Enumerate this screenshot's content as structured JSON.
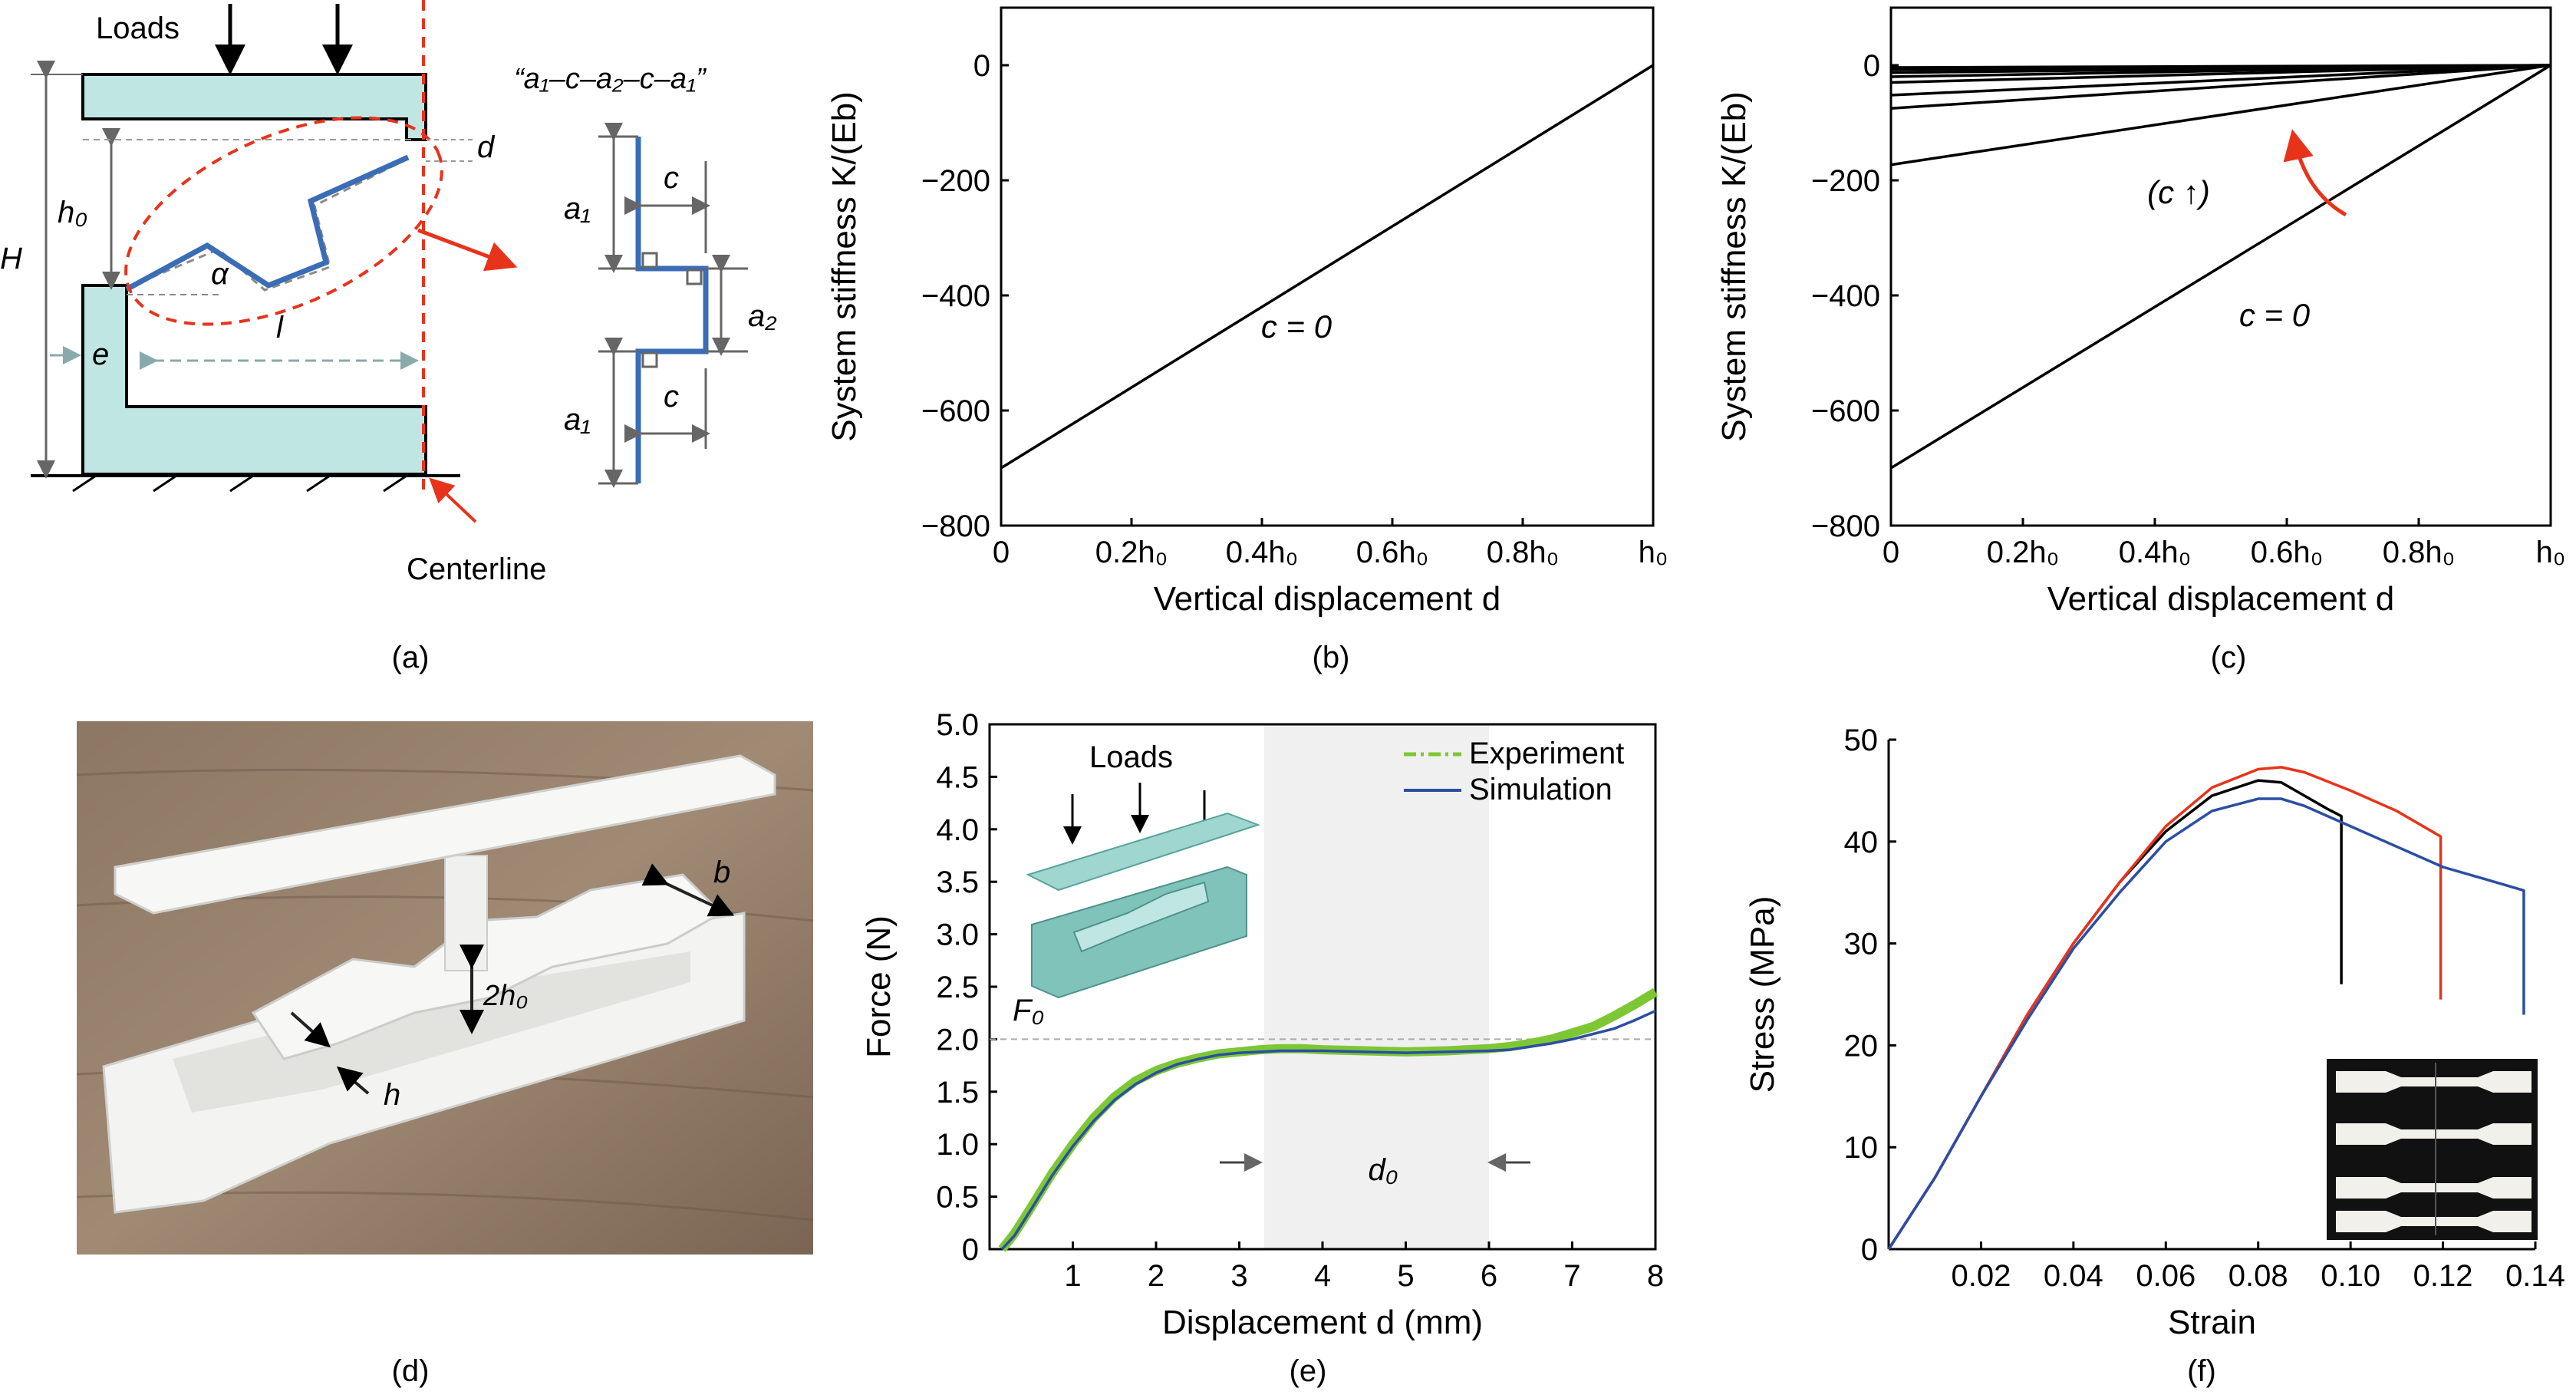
{
  "panels": {
    "a": {
      "caption": "(a)",
      "loads": "Loads",
      "sequence": "“a₁–c–a₂–c–a₁”",
      "labels": {
        "H": "H",
        "h0": "h₀",
        "e": "e",
        "alpha": "α",
        "l": "l",
        "d": "d",
        "a1_top": "a₁",
        "a2": "a₂",
        "a1_bottom": "a₁",
        "c_top": "c",
        "c_bottom": "c"
      },
      "centerline": "Centerline"
    },
    "b": {
      "caption": "(b)",
      "annotation": "c = 0"
    },
    "c": {
      "caption": "(c)",
      "annotation_c0": "c = 0",
      "annotation_arrow": "(c ↑)"
    },
    "d": {
      "caption": "(d)",
      "labels": {
        "b": "b",
        "two_h0": "2h₀",
        "h": "h"
      }
    },
    "e": {
      "caption": "(e)",
      "inset_loads": "Loads",
      "f0": "F₀",
      "d0": "d₀"
    },
    "f": {
      "caption": "(f)"
    }
  },
  "colors": {
    "experiment": "#7dc735",
    "simulation": "#2b4ea3",
    "blue_beam": "#3a6db5",
    "fill_part": "#bfe6e3",
    "red": "#e8331b",
    "black": "#000000",
    "shade": "#f0f0f0"
  },
  "chart_data": [
    {
      "id": "b",
      "type": "line",
      "xlabel": "Vertical displacement d",
      "ylabel": "System stiffness K/(Eb)",
      "xlim": [
        0,
        1
      ],
      "ylim": [
        -800,
        100
      ],
      "x_ticks": [
        0,
        0.2,
        0.4,
        0.6,
        0.8,
        1
      ],
      "x_tick_labels": [
        "0",
        "0.2h₀",
        "0.4h₀",
        "0.6h₀",
        "0.8h₀",
        "h₀"
      ],
      "y_ticks": [
        -800,
        -600,
        -400,
        -200,
        0
      ],
      "y_tick_labels": [
        "−800",
        "−600",
        "−400",
        "−200",
        "0"
      ],
      "series": [
        {
          "x": [
            0,
            1
          ],
          "y": [
            -700,
            0
          ]
        }
      ]
    },
    {
      "id": "c",
      "type": "line",
      "xlabel": "Vertical displacement d",
      "ylabel": "System stiffness K/(Eb)",
      "xlim": [
        0,
        1
      ],
      "ylim": [
        -800,
        100
      ],
      "x_ticks": [
        0,
        0.2,
        0.4,
        0.6,
        0.8,
        1
      ],
      "x_tick_labels": [
        "0",
        "0.2h₀",
        "0.4h₀",
        "0.6h₀",
        "0.8h₀",
        "h₀"
      ],
      "y_ticks": [
        -800,
        -600,
        -400,
        -200,
        0
      ],
      "y_tick_labels": [
        "−800",
        "−600",
        "−400",
        "−200",
        "0"
      ],
      "series": [
        {
          "x": [
            0,
            1
          ],
          "y": [
            -700,
            0
          ]
        },
        {
          "x": [
            0,
            1
          ],
          "y": [
            -173,
            0
          ]
        },
        {
          "x": [
            0,
            1
          ],
          "y": [
            -75,
            0
          ]
        },
        {
          "x": [
            0,
            1
          ],
          "y": [
            -52,
            0
          ]
        },
        {
          "x": [
            0,
            1
          ],
          "y": [
            -30,
            0
          ]
        },
        {
          "x": [
            0,
            1
          ],
          "y": [
            -20,
            0
          ]
        },
        {
          "x": [
            0,
            1
          ],
          "y": [
            -13,
            0
          ]
        },
        {
          "x": [
            0,
            1
          ],
          "y": [
            -8,
            0
          ]
        },
        {
          "x": [
            0,
            1
          ],
          "y": [
            -4,
            0
          ]
        }
      ]
    },
    {
      "id": "e",
      "type": "line",
      "xlabel": "Displacement d (mm)",
      "ylabel": "Force (N)",
      "xlim": [
        0,
        8
      ],
      "ylim": [
        0,
        5
      ],
      "x_ticks": [
        1,
        2,
        3,
        4,
        5,
        6,
        7,
        8
      ],
      "y_ticks": [
        0,
        0.5,
        1.0,
        1.5,
        2.0,
        2.5,
        3.0,
        3.5,
        4.0,
        4.5,
        5.0
      ],
      "y_tick_labels": [
        "0",
        "0.5",
        "1.0",
        "1.5",
        "2.0",
        "2.5",
        "3.0",
        "3.5",
        "4.0",
        "4.5",
        "5.0"
      ],
      "shaded_region": [
        3.3,
        6.0
      ],
      "f0_level": 2.0,
      "series": [
        {
          "name": "Experiment",
          "x": [
            0.15,
            0.3,
            0.5,
            0.75,
            1.0,
            1.25,
            1.5,
            1.75,
            2.0,
            2.25,
            2.5,
            2.75,
            3.0,
            3.25,
            3.5,
            3.75,
            4.0,
            4.5,
            5.0,
            5.5,
            6.0,
            6.25,
            6.5,
            6.75,
            7.0,
            7.25,
            7.5,
            7.75,
            8.0
          ],
          "y": [
            0.0,
            0.15,
            0.4,
            0.72,
            1.0,
            1.25,
            1.45,
            1.6,
            1.7,
            1.77,
            1.82,
            1.86,
            1.88,
            1.9,
            1.91,
            1.91,
            1.9,
            1.89,
            1.88,
            1.89,
            1.91,
            1.93,
            1.96,
            2.0,
            2.06,
            2.12,
            2.22,
            2.33,
            2.45
          ]
        },
        {
          "name": "Simulation",
          "x": [
            0.15,
            0.3,
            0.5,
            0.75,
            1.0,
            1.25,
            1.5,
            1.75,
            2.0,
            2.25,
            2.5,
            2.75,
            3.0,
            3.25,
            3.5,
            3.75,
            4.0,
            4.5,
            5.0,
            5.5,
            6.0,
            6.25,
            6.5,
            6.75,
            7.0,
            7.25,
            7.5,
            7.75,
            8.0
          ],
          "y": [
            0.0,
            0.13,
            0.38,
            0.7,
            0.98,
            1.22,
            1.42,
            1.57,
            1.68,
            1.76,
            1.81,
            1.85,
            1.87,
            1.88,
            1.89,
            1.89,
            1.89,
            1.88,
            1.87,
            1.88,
            1.89,
            1.9,
            1.93,
            1.96,
            2.0,
            2.05,
            2.1,
            2.18,
            2.27
          ]
        }
      ]
    },
    {
      "id": "f",
      "type": "line",
      "xlabel": "Strain",
      "ylabel": "Stress (MPa)",
      "xlim": [
        0,
        0.14
      ],
      "ylim": [
        0,
        50
      ],
      "x_ticks": [
        0.02,
        0.04,
        0.06,
        0.08,
        0.1,
        0.12,
        0.14
      ],
      "x_tick_labels": [
        "0.02",
        "0.04",
        "0.06",
        "0.08",
        "0.10",
        "0.12",
        "0.14"
      ],
      "y_ticks": [
        0,
        10,
        20,
        30,
        40,
        50
      ],
      "series": [
        {
          "color": "#000000",
          "x": [
            0,
            0.01,
            0.02,
            0.03,
            0.04,
            0.05,
            0.06,
            0.07,
            0.08,
            0.085,
            0.09,
            0.095,
            0.098,
            0.098
          ],
          "y": [
            0,
            7,
            15,
            23,
            30,
            36,
            41,
            44.5,
            46,
            45.8,
            44.5,
            43.2,
            42.5,
            26
          ]
        },
        {
          "color": "#e8331b",
          "x": [
            0,
            0.01,
            0.02,
            0.03,
            0.04,
            0.05,
            0.06,
            0.07,
            0.08,
            0.085,
            0.09,
            0.1,
            0.11,
            0.1195,
            0.1195
          ],
          "y": [
            0,
            7,
            15,
            23,
            30,
            36,
            41.5,
            45.3,
            47.1,
            47.3,
            46.8,
            45,
            43,
            40.5,
            24.5
          ]
        },
        {
          "color": "#2b4ea3",
          "x": [
            0,
            0.01,
            0.02,
            0.03,
            0.04,
            0.05,
            0.06,
            0.07,
            0.08,
            0.085,
            0.09,
            0.1,
            0.11,
            0.12,
            0.13,
            0.1375,
            0.1375
          ],
          "y": [
            0,
            7,
            15,
            22.5,
            29.5,
            35,
            40,
            43,
            44.2,
            44.2,
            43.5,
            41.5,
            39.5,
            37.5,
            36.2,
            35.2,
            23
          ]
        }
      ]
    }
  ]
}
